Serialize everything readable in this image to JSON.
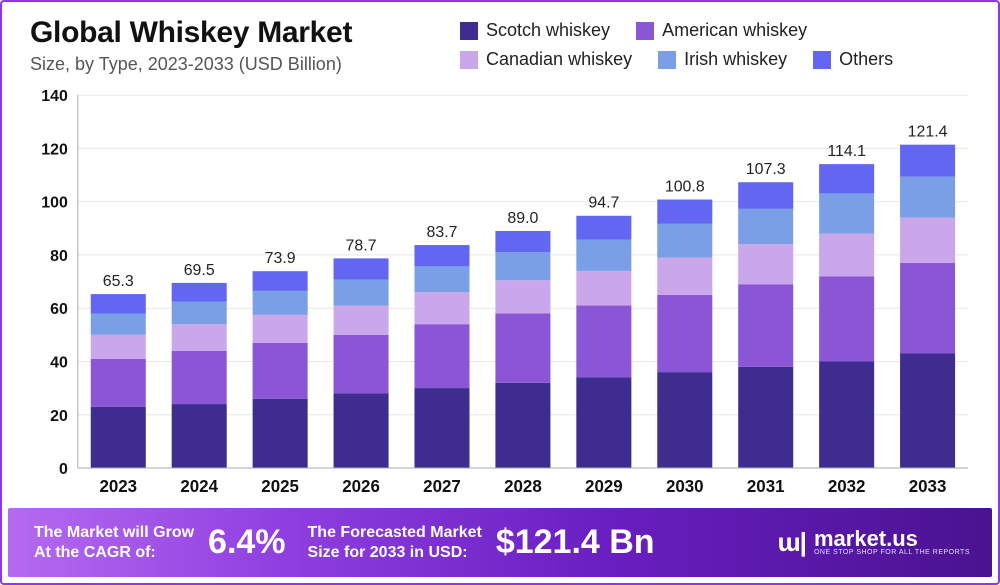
{
  "title": "Global Whiskey Market",
  "subtitle": "Size, by Type, 2023-2033 (USD Billion)",
  "legend": [
    {
      "label": "Scotch whiskey",
      "color": "#3e2c8f"
    },
    {
      "label": "American whiskey",
      "color": "#8b56d6"
    },
    {
      "label": "Canadian whiskey",
      "color": "#c9a7ea"
    },
    {
      "label": "Irish whiskey",
      "color": "#7a9fe6"
    },
    {
      "label": "Others",
      "color": "#6366f1"
    }
  ],
  "chart": {
    "type": "stacked-bar",
    "ylim": [
      0,
      140
    ],
    "ytick_step": 20,
    "yticks": [
      0,
      20,
      40,
      60,
      80,
      100,
      120,
      140
    ],
    "categories": [
      "2023",
      "2024",
      "2025",
      "2026",
      "2027",
      "2028",
      "2029",
      "2030",
      "2031",
      "2032",
      "2033"
    ],
    "totals": [
      65.3,
      69.5,
      73.9,
      78.7,
      83.7,
      89.0,
      94.7,
      100.8,
      107.3,
      114.1,
      121.4
    ],
    "series": [
      {
        "name": "Scotch whiskey",
        "values": [
          23,
          24,
          26,
          28,
          30,
          32,
          34,
          36,
          38,
          40,
          43
        ]
      },
      {
        "name": "American whiskey",
        "values": [
          18,
          20,
          21,
          22,
          24,
          26,
          27,
          29,
          31,
          32,
          34
        ]
      },
      {
        "name": "Canadian whiskey",
        "values": [
          9,
          10,
          10.5,
          11,
          12,
          12.5,
          13,
          14,
          15,
          16,
          17
        ]
      },
      {
        "name": "Irish whiskey",
        "values": [
          8,
          8.5,
          9,
          9.7,
          9.7,
          10.5,
          11.7,
          12.8,
          13.3,
          15.1,
          15.4
        ]
      },
      {
        "name": "Others",
        "values": [
          7.3,
          7,
          7.4,
          8,
          8,
          8,
          9,
          9,
          10,
          11,
          12
        ]
      }
    ],
    "colors": {
      "Scotch whiskey": "#3e2c8f",
      "American whiskey": "#8b56d6",
      "Canadian whiskey": "#c9a7ea",
      "Irish whiskey": "#7a9fe6",
      "Others": "#6366f1"
    },
    "bar_width_ratio": 0.68,
    "background_color": "#ffffff",
    "grid_color": "#e8e8e8",
    "label_fontsize": 16,
    "tick_fontsize": 17,
    "tick_fontweight": "700"
  },
  "footer": {
    "cagr_label_line1": "The Market will Grow",
    "cagr_label_line2": "At the CAGR of:",
    "cagr_value": "6.4%",
    "forecast_label_line1": "The Forecasted Market",
    "forecast_label_line2": "Size for 2033 in USD:",
    "forecast_value": "$121.4 Bn",
    "brand_name": "market.us",
    "brand_tagline": "ONE STOP SHOP FOR ALL THE REPORTS",
    "gradient_from": "#b56af0",
    "gradient_to": "#4a1290"
  }
}
